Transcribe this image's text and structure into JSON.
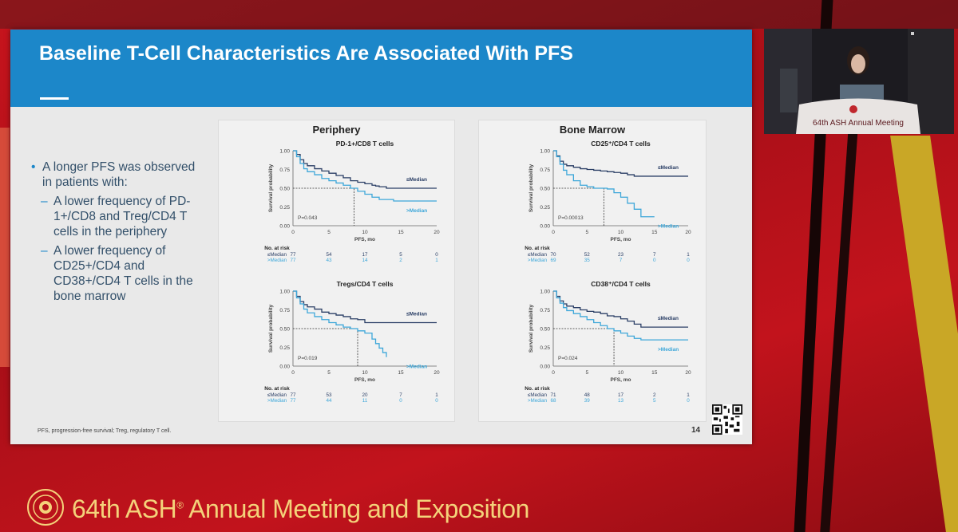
{
  "slide": {
    "title": "Baseline T-Cell Characteristics Are Associated With PFS",
    "bullet_main": "A longer PFS was observed in patients with:",
    "sub_bullets": [
      "A lower frequency of PD-1+/CD8 and Treg/CD4 T cells in the periphery",
      "A lower frequency of CD25+/CD4 and CD38+/CD4 T cells in the bone marrow"
    ],
    "footnote": "PFS, progression-free survival; Treg, regulatory T cell.",
    "page_number": "14"
  },
  "panels": {
    "left_title": "Periphery",
    "right_title": "Bone Marrow"
  },
  "chart_data": [
    {
      "type": "line",
      "title": "PD-1+/CD8 T cells",
      "xlabel": "PFS, mo",
      "ylabel": "Survival probability",
      "xlim": [
        0,
        20
      ],
      "ylim": [
        0,
        1
      ],
      "x_ticks": [
        "0",
        "5",
        "10",
        "15",
        "20"
      ],
      "y_ticks": [
        "0.00",
        "0.25",
        "0.50",
        "0.75",
        "1.00"
      ],
      "p_value": "P=0.043",
      "series": [
        {
          "name": "≤Median",
          "color": "#2b3f66",
          "x": [
            0,
            0.5,
            1,
            1.5,
            2,
            3,
            4,
            5,
            6,
            7,
            8,
            9,
            10,
            11,
            11.5,
            12,
            13,
            15,
            20
          ],
          "y": [
            1.0,
            0.95,
            0.88,
            0.83,
            0.8,
            0.76,
            0.73,
            0.7,
            0.67,
            0.64,
            0.6,
            0.58,
            0.56,
            0.54,
            0.53,
            0.52,
            0.5,
            0.5,
            0.5
          ]
        },
        {
          "name": ">Median",
          "color": "#3ea7d9",
          "x": [
            0,
            0.5,
            1,
            1.5,
            2,
            3,
            4,
            5,
            6,
            7,
            8,
            9,
            10,
            11,
            12,
            14,
            20
          ],
          "y": [
            1.0,
            0.92,
            0.83,
            0.76,
            0.72,
            0.68,
            0.63,
            0.6,
            0.57,
            0.54,
            0.5,
            0.46,
            0.42,
            0.38,
            0.35,
            0.33,
            0.33
          ]
        }
      ],
      "median_x": 8.5,
      "risk_table": {
        "header": "No. at risk",
        "rows": [
          {
            "label": "≤Median",
            "values": [
              "77",
              "54",
              "17",
              "5",
              "0"
            ]
          },
          {
            "label": ">Median",
            "values": [
              "77",
              "43",
              "14",
              "2",
              "1"
            ]
          }
        ]
      }
    },
    {
      "type": "line",
      "title": "Tregs/CD4 T cells",
      "xlabel": "PFS, mo",
      "ylabel": "Survival probability",
      "xlim": [
        0,
        20
      ],
      "ylim": [
        0,
        1
      ],
      "x_ticks": [
        "0",
        "5",
        "10",
        "15",
        "20"
      ],
      "y_ticks": [
        "0.00",
        "0.25",
        "0.50",
        "0.75",
        "1.00"
      ],
      "p_value": "P=0.019",
      "series": [
        {
          "name": "≤Median",
          "color": "#2b3f66",
          "x": [
            0,
            0.5,
            1,
            1.5,
            2,
            3,
            4,
            5,
            6,
            7,
            8,
            9,
            10,
            12,
            15,
            20
          ],
          "y": [
            1.0,
            0.93,
            0.86,
            0.82,
            0.79,
            0.76,
            0.72,
            0.7,
            0.68,
            0.66,
            0.63,
            0.62,
            0.58,
            0.58,
            0.58,
            0.58
          ]
        },
        {
          "name": ">Median",
          "color": "#3ea7d9",
          "x": [
            0,
            0.5,
            1,
            1.5,
            2,
            3,
            4,
            5,
            6,
            7,
            8,
            9,
            10,
            11,
            11.5,
            12,
            12.5,
            13
          ],
          "y": [
            1.0,
            0.91,
            0.83,
            0.76,
            0.71,
            0.66,
            0.62,
            0.58,
            0.55,
            0.52,
            0.5,
            0.47,
            0.44,
            0.36,
            0.3,
            0.24,
            0.18,
            0.12
          ]
        }
      ],
      "median_x": 9,
      "risk_table": {
        "header": "No. at risk",
        "rows": [
          {
            "label": "≤Median",
            "values": [
              "77",
              "53",
              "20",
              "7",
              "1"
            ]
          },
          {
            "label": ">Median",
            "values": [
              "77",
              "44",
              "11",
              "0",
              "0"
            ]
          }
        ]
      }
    },
    {
      "type": "line",
      "title": "CD25⁺/CD4 T cells",
      "xlabel": "PFS, mo",
      "ylabel": "Survival probability",
      "xlim": [
        0,
        20
      ],
      "ylim": [
        0,
        1
      ],
      "x_ticks": [
        "0",
        "5",
        "10",
        "15",
        "20"
      ],
      "y_ticks": [
        "0.00",
        "0.25",
        "0.50",
        "0.75",
        "1.00"
      ],
      "p_value": "P=0.00013",
      "series": [
        {
          "name": "≤Median",
          "color": "#2b3f66",
          "x": [
            0,
            0.5,
            1,
            1.5,
            2,
            3,
            4,
            5,
            6,
            7,
            8,
            9,
            10,
            11,
            12,
            20
          ],
          "y": [
            1.0,
            0.93,
            0.86,
            0.82,
            0.8,
            0.78,
            0.76,
            0.75,
            0.74,
            0.73,
            0.72,
            0.71,
            0.7,
            0.68,
            0.66,
            0.66
          ]
        },
        {
          "name": ">Median",
          "color": "#3ea7d9",
          "x": [
            0,
            0.5,
            1,
            1.5,
            2,
            3,
            4,
            5,
            6,
            7,
            8,
            9,
            10,
            11,
            12,
            13,
            15
          ],
          "y": [
            1.0,
            0.92,
            0.82,
            0.74,
            0.68,
            0.6,
            0.54,
            0.52,
            0.5,
            0.5,
            0.49,
            0.44,
            0.38,
            0.3,
            0.22,
            0.12,
            0.12
          ]
        }
      ],
      "median_x": 7.5,
      "risk_table": {
        "header": "No. at risk",
        "rows": [
          {
            "label": "≤Median",
            "values": [
              "70",
              "52",
              "23",
              "7",
              "1"
            ]
          },
          {
            "label": ">Median",
            "values": [
              "69",
              "35",
              "7",
              "0",
              "0"
            ]
          }
        ]
      }
    },
    {
      "type": "line",
      "title": "CD38⁺/CD4 T cells",
      "xlabel": "PFS, mo",
      "ylabel": "Survival probability",
      "xlim": [
        0,
        20
      ],
      "ylim": [
        0,
        1
      ],
      "x_ticks": [
        "0",
        "5",
        "10",
        "15",
        "20"
      ],
      "y_ticks": [
        "0.00",
        "0.25",
        "0.50",
        "0.75",
        "1.00"
      ],
      "p_value": "P=0.024",
      "series": [
        {
          "name": "≤Median",
          "color": "#2b3f66",
          "x": [
            0,
            0.5,
            1,
            1.5,
            2,
            3,
            4,
            5,
            6,
            7,
            8,
            9,
            10,
            11,
            12,
            13,
            20
          ],
          "y": [
            1.0,
            0.93,
            0.87,
            0.83,
            0.8,
            0.78,
            0.75,
            0.73,
            0.72,
            0.7,
            0.67,
            0.66,
            0.63,
            0.6,
            0.56,
            0.52,
            0.52
          ]
        },
        {
          "name": ">Median",
          "color": "#3ea7d9",
          "x": [
            0,
            0.5,
            1,
            1.5,
            2,
            3,
            4,
            5,
            6,
            7,
            8,
            9,
            10,
            11,
            12,
            13,
            15,
            20
          ],
          "y": [
            1.0,
            0.91,
            0.84,
            0.78,
            0.74,
            0.7,
            0.66,
            0.62,
            0.58,
            0.54,
            0.5,
            0.47,
            0.44,
            0.4,
            0.37,
            0.35,
            0.35,
            0.35
          ]
        }
      ],
      "median_x": 9,
      "risk_table": {
        "header": "No. at risk",
        "rows": [
          {
            "label": "≤Median",
            "values": [
              "71",
              "48",
              "17",
              "2",
              "1"
            ]
          },
          {
            "label": ">Median",
            "values": [
              "68",
              "39",
              "13",
              "5",
              "0"
            ]
          }
        ]
      }
    }
  ],
  "video": {
    "podium_text": "64th ASH Annual Meeting"
  },
  "banner": {
    "text_pre": "64th ASH",
    "registered": "®",
    "text_post": " Annual Meeting and Exposition"
  },
  "colors": {
    "header_blue": "#1c87c9",
    "background_red": "#b3121b",
    "banner_gold": "#f4d27a"
  }
}
